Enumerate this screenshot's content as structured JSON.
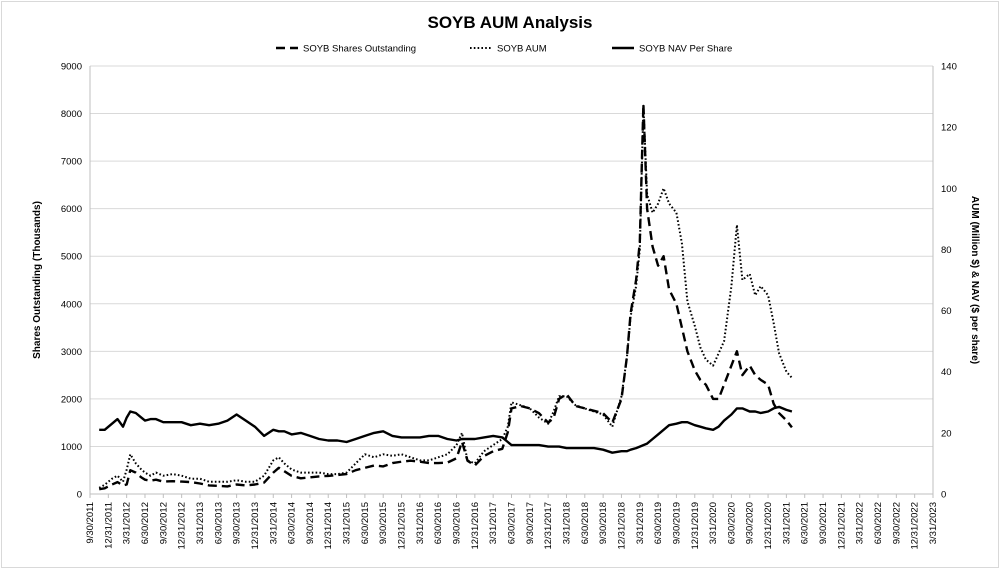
{
  "chart_data": {
    "type": "line",
    "title": "SOYB AUM Analysis",
    "ylabel_left": "Shares Outstanding (Thousands)",
    "ylabel_right": "AUM (Million $) & NAV ($ per share)",
    "ylim_left": [
      0,
      9000
    ],
    "yticks_left": [
      "0",
      "1000",
      "2000",
      "3000",
      "4000",
      "5000",
      "6000",
      "7000",
      "8000",
      "9000"
    ],
    "ylim_right": [
      0,
      140
    ],
    "yticks_right": [
      "0",
      "20",
      "40",
      "60",
      "80",
      "100",
      "120",
      "140"
    ],
    "grid": "horizontal",
    "legend_position": "top-center",
    "x_tick_labels": [
      "9/30/2011",
      "12/31/2011",
      "3/31/2012",
      "6/30/2012",
      "9/30/2012",
      "12/31/2012",
      "3/31/2013",
      "6/30/2013",
      "9/30/2013",
      "12/31/2013",
      "3/31/2014",
      "6/30/2014",
      "9/30/2014",
      "12/31/2014",
      "3/31/2015",
      "6/30/2015",
      "9/30/2015",
      "12/31/2015",
      "3/31/2016",
      "6/30/2016",
      "9/30/2016",
      "12/31/2016",
      "3/31/2017",
      "6/30/2017",
      "9/30/2017",
      "12/31/2017",
      "3/31/2018",
      "6/30/2018",
      "9/30/2018",
      "12/31/2018",
      "3/31/2019",
      "6/30/2019",
      "9/30/2019",
      "12/31/2019",
      "3/31/2020",
      "6/30/2020",
      "9/30/2020",
      "12/31/2020",
      "3/31/2021",
      "6/30/2021",
      "9/30/2021",
      "12/31/2021",
      "3/31/2022",
      "6/30/2022",
      "9/30/2022",
      "12/31/2022",
      "3/31/2023"
    ],
    "series": [
      {
        "name": "SOYB Shares Outstanding",
        "axis": "left",
        "style": "dashed",
        "points": [
          [
            0.5,
            100
          ],
          [
            0.8,
            120
          ],
          [
            1.2,
            200
          ],
          [
            1.5,
            250
          ],
          [
            1.8,
            180
          ],
          [
            2.0,
            200
          ],
          [
            2.2,
            500
          ],
          [
            2.5,
            450
          ],
          [
            2.8,
            350
          ],
          [
            3.0,
            300
          ],
          [
            3.3,
            280
          ],
          [
            3.6,
            300
          ],
          [
            4.0,
            260
          ],
          [
            4.5,
            270
          ],
          [
            5.0,
            260
          ],
          [
            5.5,
            250
          ],
          [
            6.0,
            220
          ],
          [
            6.5,
            180
          ],
          [
            7.0,
            170
          ],
          [
            7.5,
            160
          ],
          [
            8.0,
            200
          ],
          [
            8.5,
            180
          ],
          [
            9.0,
            200
          ],
          [
            9.5,
            240
          ],
          [
            10.0,
            450
          ],
          [
            10.3,
            550
          ],
          [
            10.6,
            480
          ],
          [
            11.0,
            380
          ],
          [
            11.5,
            330
          ],
          [
            12.0,
            350
          ],
          [
            12.5,
            370
          ],
          [
            13.0,
            380
          ],
          [
            13.5,
            400
          ],
          [
            14.0,
            420
          ],
          [
            14.5,
            500
          ],
          [
            15.0,
            550
          ],
          [
            15.5,
            600
          ],
          [
            16.0,
            580
          ],
          [
            16.5,
            650
          ],
          [
            17.0,
            680
          ],
          [
            17.5,
            700
          ],
          [
            18.0,
            680
          ],
          [
            18.5,
            650
          ],
          [
            19.0,
            650
          ],
          [
            19.5,
            660
          ],
          [
            20.0,
            750
          ],
          [
            20.3,
            1100
          ],
          [
            20.6,
            700
          ],
          [
            21.0,
            600
          ],
          [
            21.5,
            800
          ],
          [
            22.0,
            900
          ],
          [
            22.5,
            950
          ],
          [
            22.8,
            1300
          ],
          [
            23.0,
            1800
          ],
          [
            23.5,
            1850
          ],
          [
            24.0,
            1800
          ],
          [
            24.5,
            1700
          ],
          [
            25.0,
            1500
          ],
          [
            25.3,
            1600
          ],
          [
            25.6,
            2000
          ],
          [
            26.0,
            2100
          ],
          [
            26.5,
            1850
          ],
          [
            27.0,
            1800
          ],
          [
            27.5,
            1750
          ],
          [
            28.0,
            1700
          ],
          [
            28.5,
            1500
          ],
          [
            29.0,
            2000
          ],
          [
            29.3,
            2900
          ],
          [
            29.5,
            3800
          ],
          [
            29.8,
            4500
          ],
          [
            30.0,
            5300
          ],
          [
            30.2,
            8200
          ],
          [
            30.4,
            6000
          ],
          [
            30.7,
            5200
          ],
          [
            31.0,
            4800
          ],
          [
            31.3,
            5000
          ],
          [
            31.6,
            4300
          ],
          [
            32.0,
            4000
          ],
          [
            32.3,
            3500
          ],
          [
            32.6,
            3000
          ],
          [
            33.0,
            2600
          ],
          [
            33.3,
            2400
          ],
          [
            33.6,
            2300
          ],
          [
            34.0,
            2000
          ],
          [
            34.3,
            2000
          ],
          [
            34.6,
            2300
          ],
          [
            35.0,
            2700
          ],
          [
            35.3,
            3000
          ],
          [
            35.6,
            2500
          ],
          [
            36.0,
            2700
          ],
          [
            36.3,
            2500
          ],
          [
            36.6,
            2400
          ],
          [
            37.0,
            2300
          ],
          [
            37.3,
            1900
          ],
          [
            37.6,
            1700
          ],
          [
            38.0,
            1550
          ],
          [
            38.3,
            1400
          ]
        ]
      },
      {
        "name": "SOYB AUM",
        "axis": "right",
        "style": "dotted",
        "points": [
          [
            0.5,
            2
          ],
          [
            0.8,
            3
          ],
          [
            1.2,
            5
          ],
          [
            1.5,
            6
          ],
          [
            1.8,
            4
          ],
          [
            2.0,
            8
          ],
          [
            2.2,
            13
          ],
          [
            2.5,
            10
          ],
          [
            2.8,
            8
          ],
          [
            3.0,
            7
          ],
          [
            3.3,
            6
          ],
          [
            3.6,
            7
          ],
          [
            4.0,
            6
          ],
          [
            4.5,
            6.5
          ],
          [
            5.0,
            6
          ],
          [
            5.5,
            5
          ],
          [
            6.0,
            5
          ],
          [
            6.5,
            4
          ],
          [
            7.0,
            4
          ],
          [
            7.5,
            4
          ],
          [
            8.0,
            4.5
          ],
          [
            8.5,
            4
          ],
          [
            9.0,
            4
          ],
          [
            9.5,
            6
          ],
          [
            10.0,
            11
          ],
          [
            10.3,
            12
          ],
          [
            10.6,
            10
          ],
          [
            11.0,
            8
          ],
          [
            11.5,
            7
          ],
          [
            12.0,
            7
          ],
          [
            12.5,
            7
          ],
          [
            13.0,
            6.5
          ],
          [
            13.5,
            6.5
          ],
          [
            14.0,
            7
          ],
          [
            14.5,
            10
          ],
          [
            15.0,
            13
          ],
          [
            15.5,
            12
          ],
          [
            16.0,
            13
          ],
          [
            16.5,
            12.5
          ],
          [
            17.0,
            13
          ],
          [
            17.5,
            12
          ],
          [
            18.0,
            11
          ],
          [
            18.5,
            11
          ],
          [
            19.0,
            12
          ],
          [
            19.5,
            13
          ],
          [
            20.0,
            16
          ],
          [
            20.3,
            20
          ],
          [
            20.6,
            11
          ],
          [
            21.0,
            10
          ],
          [
            21.5,
            14
          ],
          [
            22.0,
            16
          ],
          [
            22.5,
            18
          ],
          [
            22.8,
            22
          ],
          [
            23.0,
            30
          ],
          [
            23.5,
            29
          ],
          [
            24.0,
            28
          ],
          [
            24.5,
            25
          ],
          [
            25.0,
            23
          ],
          [
            25.3,
            27
          ],
          [
            25.6,
            32
          ],
          [
            26.0,
            32
          ],
          [
            26.5,
            29
          ],
          [
            27.0,
            28
          ],
          [
            27.5,
            27
          ],
          [
            28.0,
            26
          ],
          [
            28.5,
            22
          ],
          [
            29.0,
            32
          ],
          [
            29.3,
            45
          ],
          [
            29.5,
            58
          ],
          [
            29.8,
            68
          ],
          [
            30.0,
            80
          ],
          [
            30.2,
            127
          ],
          [
            30.4,
            98
          ],
          [
            30.7,
            92
          ],
          [
            31.0,
            95
          ],
          [
            31.3,
            100
          ],
          [
            31.6,
            95
          ],
          [
            32.0,
            92
          ],
          [
            32.3,
            82
          ],
          [
            32.6,
            63
          ],
          [
            33.0,
            55
          ],
          [
            33.3,
            48
          ],
          [
            33.6,
            44
          ],
          [
            34.0,
            42
          ],
          [
            34.3,
            46
          ],
          [
            34.6,
            50
          ],
          [
            35.0,
            68
          ],
          [
            35.3,
            88
          ],
          [
            35.6,
            70
          ],
          [
            36.0,
            72
          ],
          [
            36.3,
            65
          ],
          [
            36.6,
            68
          ],
          [
            37.0,
            65
          ],
          [
            37.3,
            56
          ],
          [
            37.6,
            46
          ],
          [
            38.0,
            40
          ],
          [
            38.3,
            38
          ]
        ]
      },
      {
        "name": "SOYB NAV Per Share",
        "axis": "right",
        "style": "solid",
        "points": [
          [
            0.5,
            21
          ],
          [
            0.8,
            21
          ],
          [
            1.2,
            23
          ],
          [
            1.5,
            24.5
          ],
          [
            1.8,
            22
          ],
          [
            2.0,
            25
          ],
          [
            2.2,
            27
          ],
          [
            2.5,
            26.5
          ],
          [
            2.8,
            25
          ],
          [
            3.0,
            24
          ],
          [
            3.3,
            24.5
          ],
          [
            3.6,
            24.5
          ],
          [
            4.0,
            23.5
          ],
          [
            4.5,
            23.5
          ],
          [
            5.0,
            23.5
          ],
          [
            5.5,
            22.5
          ],
          [
            6.0,
            23
          ],
          [
            6.5,
            22.5
          ],
          [
            7.0,
            23
          ],
          [
            7.5,
            24
          ],
          [
            8.0,
            26
          ],
          [
            8.5,
            24
          ],
          [
            9.0,
            22
          ],
          [
            9.5,
            19
          ],
          [
            10.0,
            21
          ],
          [
            10.3,
            20.5
          ],
          [
            10.6,
            20.5
          ],
          [
            11.0,
            19.5
          ],
          [
            11.5,
            20
          ],
          [
            12.0,
            19
          ],
          [
            12.5,
            18
          ],
          [
            13.0,
            17.5
          ],
          [
            13.5,
            17.5
          ],
          [
            14.0,
            17
          ],
          [
            14.5,
            18
          ],
          [
            15.0,
            19
          ],
          [
            15.5,
            20
          ],
          [
            16.0,
            20.5
          ],
          [
            16.5,
            19
          ],
          [
            17.0,
            18.5
          ],
          [
            17.5,
            18.5
          ],
          [
            18.0,
            18.5
          ],
          [
            18.5,
            19
          ],
          [
            19.0,
            19
          ],
          [
            19.5,
            18
          ],
          [
            20.0,
            17.5
          ],
          [
            20.3,
            18
          ],
          [
            20.6,
            18
          ],
          [
            21.0,
            18
          ],
          [
            21.5,
            18.5
          ],
          [
            22.0,
            19
          ],
          [
            22.5,
            18.5
          ],
          [
            22.8,
            17
          ],
          [
            23.0,
            16
          ],
          [
            23.5,
            16
          ],
          [
            24.0,
            16
          ],
          [
            24.5,
            16
          ],
          [
            25.0,
            15.5
          ],
          [
            25.3,
            15.5
          ],
          [
            25.6,
            15.5
          ],
          [
            26.0,
            15
          ],
          [
            26.5,
            15
          ],
          [
            27.0,
            15
          ],
          [
            27.5,
            15
          ],
          [
            28.0,
            14.5
          ],
          [
            28.5,
            13.5
          ],
          [
            29.0,
            14
          ],
          [
            29.3,
            14
          ],
          [
            29.5,
            14.5
          ],
          [
            29.8,
            15
          ],
          [
            30.0,
            15.5
          ],
          [
            30.2,
            16
          ],
          [
            30.4,
            16.5
          ],
          [
            30.7,
            18
          ],
          [
            31.0,
            19.5
          ],
          [
            31.3,
            21
          ],
          [
            31.6,
            22.5
          ],
          [
            32.0,
            23
          ],
          [
            32.3,
            23.5
          ],
          [
            32.6,
            23.5
          ],
          [
            33.0,
            22.5
          ],
          [
            33.3,
            22
          ],
          [
            33.6,
            21.5
          ],
          [
            34.0,
            21
          ],
          [
            34.3,
            22
          ],
          [
            34.6,
            24
          ],
          [
            35.0,
            26
          ],
          [
            35.3,
            28
          ],
          [
            35.6,
            28
          ],
          [
            36.0,
            27
          ],
          [
            36.3,
            27
          ],
          [
            36.6,
            26.5
          ],
          [
            37.0,
            27
          ],
          [
            37.3,
            28
          ],
          [
            37.6,
            28.5
          ],
          [
            38.0,
            27.5
          ],
          [
            38.3,
            27
          ]
        ]
      }
    ]
  }
}
